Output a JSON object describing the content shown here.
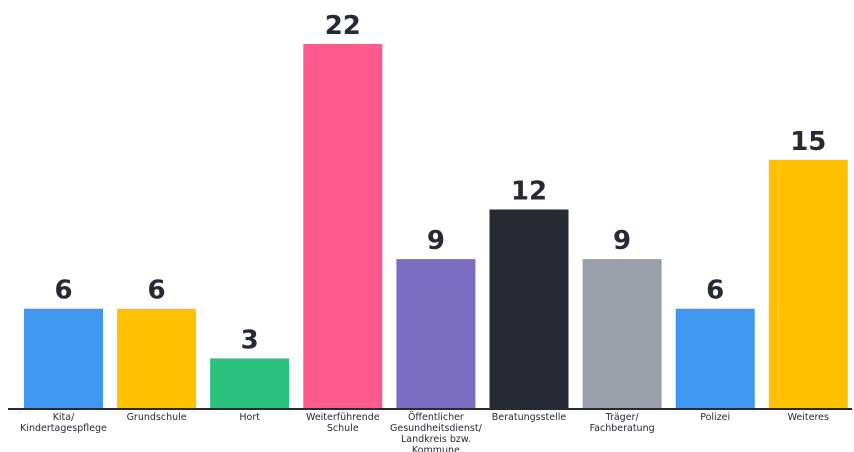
{
  "chart_data": {
    "type": "bar",
    "title": "",
    "xlabel": "",
    "ylabel": "",
    "ylim": [
      0,
      22
    ],
    "grid": false,
    "legend": "none",
    "categories": [
      [
        "Kita/",
        "Kindertagespflege"
      ],
      [
        "Grundschule"
      ],
      [
        "Hort"
      ],
      [
        "Weiterführende",
        "Schule"
      ],
      [
        "Öffentlicher",
        "Gesundheitsdienst/",
        "Landkreis bzw.",
        "Kommune"
      ],
      [
        "Beratungsstelle"
      ],
      [
        "Träger/",
        "Fachberatung"
      ],
      [
        "Polizei"
      ],
      [
        "Weiteres"
      ]
    ],
    "values": [
      6,
      6,
      3,
      22,
      9,
      12,
      9,
      6,
      15
    ],
    "colors": [
      "#4196f0",
      "#fec100",
      "#29c17c",
      "#ff5a8c",
      "#7b6bc1",
      "#262a35",
      "#9aa1ad",
      "#4196f0",
      "#fec100"
    ],
    "axis_color": "#262a35",
    "text_color": "#262a35"
  }
}
